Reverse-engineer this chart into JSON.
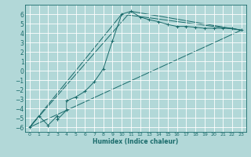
{
  "xlabel": "Humidex (Indice chaleur)",
  "background_color": "#b2d8d8",
  "grid_color": "#ffffff",
  "line_color": "#1a6b6b",
  "xlim": [
    -0.5,
    23.5
  ],
  "ylim": [
    -6.5,
    7.0
  ],
  "xticks": [
    0,
    1,
    2,
    3,
    4,
    5,
    6,
    7,
    8,
    9,
    10,
    11,
    12,
    13,
    14,
    15,
    16,
    17,
    18,
    19,
    20,
    21,
    22,
    23
  ],
  "yticks": [
    -6,
    -5,
    -4,
    -3,
    -2,
    -1,
    0,
    1,
    2,
    3,
    4,
    5,
    6
  ],
  "series1_x": [
    0,
    1,
    2,
    3,
    3,
    4,
    4,
    5,
    6,
    7,
    8,
    9,
    10,
    11,
    12,
    13,
    14,
    15,
    16,
    17,
    18,
    19,
    20,
    21,
    22,
    23
  ],
  "series1_y": [
    -6.0,
    -4.8,
    -5.8,
    -4.8,
    -5.2,
    -4.2,
    -3.2,
    -2.8,
    -2.2,
    -1.2,
    0.2,
    3.2,
    6.0,
    6.3,
    5.7,
    5.4,
    5.2,
    4.9,
    4.7,
    4.7,
    4.6,
    4.5,
    4.5,
    4.5,
    4.5,
    4.3
  ],
  "line2_x": [
    0,
    23
  ],
  "line2_y": [
    -6.0,
    4.3
  ],
  "line3_x": [
    0,
    11,
    23
  ],
  "line3_y": [
    -6.0,
    6.3,
    4.3
  ],
  "line4_x": [
    0,
    10,
    23
  ],
  "line4_y": [
    -6.0,
    6.0,
    4.3
  ]
}
